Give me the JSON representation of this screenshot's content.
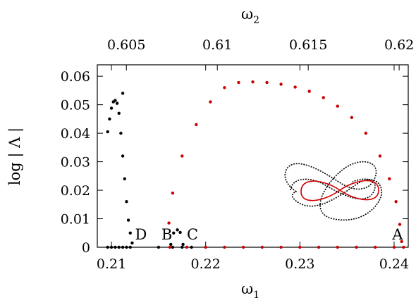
{
  "chart_data": {
    "type": "scatter",
    "title": "",
    "xlabel": {
      "base": "ω",
      "sub": "1"
    },
    "x2label": {
      "base": "ω",
      "sub": "2"
    },
    "ylabel": "log | Λ |",
    "xlim": [
      0.2085,
      0.2415
    ],
    "x2lim": [
      0.6034,
      0.6205
    ],
    "ylim": [
      0,
      0.064
    ],
    "grid": false,
    "legend": "none",
    "x_ticks": [
      {
        "v": 0.21,
        "label": "0.21"
      },
      {
        "v": 0.22,
        "label": "0.22"
      },
      {
        "v": 0.23,
        "label": "0.23"
      },
      {
        "v": 0.24,
        "label": "0.24"
      }
    ],
    "x2_ticks": [
      {
        "v": 0.605,
        "label": "0.605"
      },
      {
        "v": 0.61,
        "label": "0.61"
      },
      {
        "v": 0.615,
        "label": "0.615"
      },
      {
        "v": 0.62,
        "label": "0.62"
      }
    ],
    "y_ticks": [
      {
        "v": 0,
        "label": "0"
      },
      {
        "v": 0.01,
        "label": "0.01"
      },
      {
        "v": 0.02,
        "label": "0.02"
      },
      {
        "v": 0.03,
        "label": "0.03"
      },
      {
        "v": 0.04,
        "label": "0.04"
      },
      {
        "v": 0.05,
        "label": "0.05"
      },
      {
        "v": 0.06,
        "label": "0.06"
      }
    ],
    "series": [
      {
        "color": "#000000",
        "x": [
          0.2096,
          0.2098,
          0.21,
          0.2102,
          0.2104,
          0.2106,
          0.2108,
          0.211,
          0.2112,
          0.2114,
          0.2116,
          0.2118,
          0.212,
          0.2122
        ],
        "y": [
          0.0405,
          0.045,
          0.0488,
          0.051,
          0.0515,
          0.0505,
          0.047,
          0.04,
          0.032,
          0.024,
          0.016,
          0.0095,
          0.005,
          0.0015
        ]
      },
      {
        "color": "#000000",
        "x": [
          0.2163,
          0.2166,
          0.217,
          0.2173,
          0.2176
        ],
        "y": [
          0.001,
          0.005,
          0.0061,
          0.0052,
          0.001
        ]
      },
      {
        "color": "#000000",
        "x": [
          0.2112
        ],
        "y": [
          0.054
        ]
      },
      {
        "color": "#cc0000",
        "x": [
          0.2161,
          0.2165,
          0.2175,
          0.219,
          0.2205,
          0.222,
          0.2235,
          0.225,
          0.2265,
          0.228,
          0.2295,
          0.231,
          0.2325,
          0.234,
          0.2355,
          0.237,
          0.2385,
          0.2395,
          0.2402,
          0.2406,
          0.2408
        ],
        "y": [
          0.0085,
          0.019,
          0.032,
          0.043,
          0.051,
          0.056,
          0.0578,
          0.058,
          0.0578,
          0.0572,
          0.0562,
          0.0547,
          0.0525,
          0.0495,
          0.0455,
          0.04,
          0.032,
          0.024,
          0.016,
          0.008,
          0.002
        ]
      },
      {
        "color": "#cc0000",
        "x": [
          0.2162,
          0.218,
          0.22,
          0.222,
          0.224,
          0.226,
          0.228,
          0.23,
          0.232,
          0.234,
          0.236,
          0.238,
          0.24,
          0.241
        ],
        "y": [
          0,
          0,
          0,
          0,
          0,
          0,
          0,
          0,
          0,
          0,
          0,
          0,
          0,
          0
        ]
      },
      {
        "color": "#000000",
        "x": [
          0.2096,
          0.21,
          0.2104,
          0.2108,
          0.2112,
          0.2116,
          0.212,
          0.215,
          0.2165,
          0.2175,
          0.2185
        ],
        "y": [
          0,
          0,
          0,
          0,
          0,
          0,
          0,
          0,
          0,
          0,
          0
        ]
      }
    ],
    "annotations": [
      {
        "text": "A",
        "x": 0.2398,
        "y": 0.0015
      },
      {
        "text": "B",
        "x": 0.2153,
        "y": 0.0015
      },
      {
        "text": "C",
        "x": 0.218,
        "y": 0.0015
      },
      {
        "text": "D",
        "x": 0.2125,
        "y": 0.0015
      }
    ]
  }
}
